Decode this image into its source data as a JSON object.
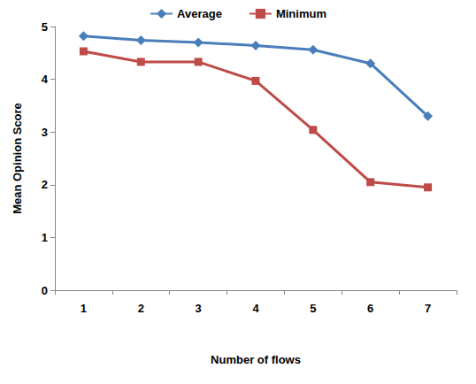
{
  "chart_data": {
    "type": "line",
    "x_label": "Number of flows",
    "y_label": "Mean Opinion Score",
    "categories": [
      "1",
      "2",
      "3",
      "4",
      "5",
      "6",
      "7"
    ],
    "series": [
      {
        "name": "Average",
        "color": "#4a7ebb",
        "marker": "diamond",
        "line_style": "solid",
        "values": [
          4.82,
          4.74,
          4.7,
          4.64,
          4.56,
          4.3,
          3.3
        ]
      },
      {
        "name": "Minimum",
        "color": "#be4b48",
        "marker": "square",
        "line_style": "solid",
        "values": [
          4.53,
          4.33,
          4.33,
          3.97,
          3.04,
          2.05,
          1.95
        ]
      }
    ],
    "ylim": [
      0,
      5
    ],
    "yticks": [
      0,
      1,
      2,
      3,
      4,
      5
    ],
    "grid": false,
    "legend": "top"
  }
}
